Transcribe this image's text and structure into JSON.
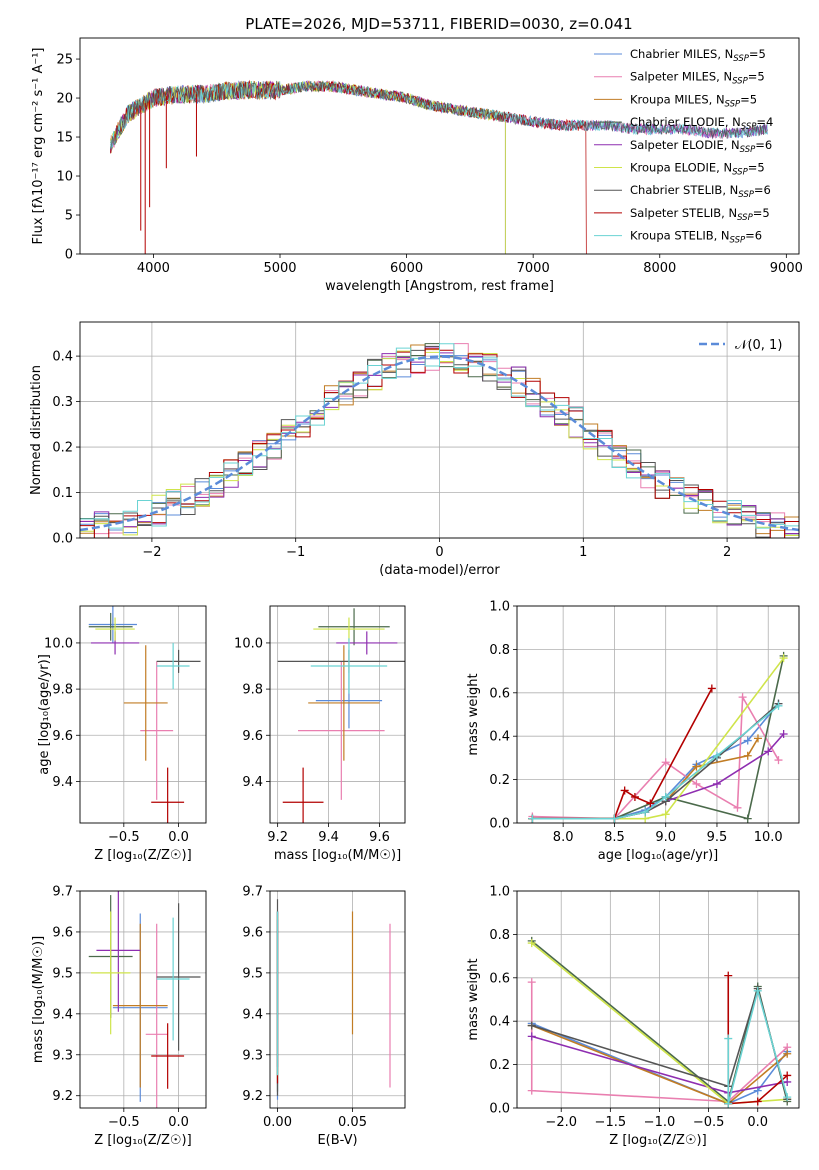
{
  "title": "PLATE=2026, MJD=53711, FIBERID=0030, z=0.041",
  "colors": [
    "#5b8bd9",
    "#e97fb0",
    "#c17c24",
    "#4b6a4b",
    "#8e2eb0",
    "#cfe44a",
    "#555555",
    "#b30000",
    "#6ad3d3"
  ],
  "legend": [
    {
      "label": "Chabrier MILES, N",
      "sub": "SSP",
      "eq": "=5"
    },
    {
      "label": "Salpeter MILES, N",
      "sub": "SSP",
      "eq": "=5"
    },
    {
      "label": "Kroupa MILES, N",
      "sub": "SSP",
      "eq": "=5"
    },
    {
      "label": "Chabrier ELODIE, N",
      "sub": "SSP",
      "eq": "=4"
    },
    {
      "label": "Salpeter ELODIE, N",
      "sub": "SSP",
      "eq": "=6"
    },
    {
      "label": "Kroupa ELODIE, N",
      "sub": "SSP",
      "eq": "=5"
    },
    {
      "label": "Chabrier STELIB, N",
      "sub": "SSP",
      "eq": "=6"
    },
    {
      "label": "Salpeter STELIB, N",
      "sub": "SSP",
      "eq": "=5"
    },
    {
      "label": "Kroupa STELIB, N",
      "sub": "SSP",
      "eq": "=6"
    }
  ],
  "normal_label": "𝒩(0, 1)",
  "chart_data": [
    {
      "type": "line",
      "xlabel": "wavelength [Angstrom, rest frame]",
      "ylabel": "Flux [fλ10⁻¹⁷ erg cm⁻² s⁻¹ A⁻¹]",
      "xlim": [
        3420,
        9100
      ],
      "ylim": [
        0,
        27.7
      ],
      "xticks": [
        4000,
        5000,
        6000,
        7000,
        8000,
        9000
      ],
      "yticks": [
        0,
        5,
        10,
        15,
        20,
        25
      ],
      "grid": false,
      "legend_position": "top-right",
      "spectrum_x": [
        3660,
        3800,
        4000,
        4200,
        4400,
        4600,
        4800,
        5000,
        5200,
        5400,
        5600,
        5800,
        6000,
        6200,
        6400,
        6600,
        6800,
        7000,
        7200,
        7400,
        7600,
        7800,
        8000,
        8200,
        8400,
        8600,
        8850
      ],
      "spectrum_y": [
        14,
        18,
        20,
        20.5,
        20.5,
        21,
        21,
        21,
        21.5,
        21.5,
        21,
        20.5,
        20,
        19,
        18.5,
        18,
        17.5,
        17,
        16.5,
        16.5,
        16.5,
        16,
        16,
        16,
        15.5,
        15.5,
        16
      ]
    },
    {
      "type": "line",
      "xlabel": "(data-model)/error",
      "ylabel": "Normed distribution",
      "xlim": [
        -2.5,
        2.5
      ],
      "ylim": [
        0,
        0.475
      ],
      "xticks": [
        -2,
        -1,
        0,
        1,
        2
      ],
      "yticks": [
        0.0,
        0.1,
        0.2,
        0.3,
        0.4
      ],
      "grid": true,
      "legend_position": "top-right",
      "bins": [
        -2.5,
        -2.4,
        -2.3,
        -2.2,
        -2.1,
        -2.0,
        -1.9,
        -1.8,
        -1.7,
        -1.6,
        -1.5,
        -1.4,
        -1.3,
        -1.2,
        -1.1,
        -1.0,
        -0.9,
        -0.8,
        -0.7,
        -0.6,
        -0.5,
        -0.4,
        -0.3,
        -0.2,
        -0.1,
        0.0,
        0.1,
        0.2,
        0.3,
        0.4,
        0.5,
        0.6,
        0.7,
        0.8,
        0.9,
        1.0,
        1.1,
        1.2,
        1.3,
        1.4,
        1.5,
        1.6,
        1.7,
        1.8,
        1.9,
        2.0,
        2.1,
        2.2,
        2.3,
        2.4,
        2.5
      ]
    },
    {
      "type": "scatter",
      "xlabel": "Z [log₁₀(Z/Z☉)]",
      "ylabel": "age  [log₁₀(age/yr)]",
      "xlim": [
        -0.9,
        0.25
      ],
      "ylim": [
        9.22,
        10.16
      ],
      "xticks": [
        -0.5,
        0.0
      ],
      "yticks": [
        9.4,
        9.6,
        9.8,
        10.0
      ],
      "grid": true,
      "points": [
        {
          "x": -0.6,
          "y": 10.08,
          "xe": 0.22,
          "ye": 0.08
        },
        {
          "x": -0.2,
          "y": 9.62,
          "xe": 0.15,
          "ye": 0.3
        },
        {
          "x": -0.3,
          "y": 9.74,
          "xe": 0.2,
          "ye": 0.25
        },
        {
          "x": -0.62,
          "y": 10.07,
          "xe": 0.2,
          "ye": 0.06
        },
        {
          "x": -0.58,
          "y": 10.0,
          "xe": 0.22,
          "ye": 0.05
        },
        {
          "x": -0.58,
          "y": 10.06,
          "xe": 0.18,
          "ye": 0.05
        },
        {
          "x": 0.0,
          "y": 9.92,
          "xe": 0.2,
          "ye": 0.05
        },
        {
          "x": -0.1,
          "y": 9.31,
          "xe": 0.15,
          "ye": 0.15
        },
        {
          "x": -0.05,
          "y": 9.9,
          "xe": 0.15,
          "ye": 0.1
        }
      ]
    },
    {
      "type": "scatter",
      "xlabel": "mass [log₁₀(M/M☉)]",
      "ylabel": "",
      "xlim": [
        9.17,
        9.7
      ],
      "ylim": [
        9.22,
        10.16
      ],
      "xticks": [
        9.2,
        9.4,
        9.6
      ],
      "yticks": [
        9.4,
        9.6,
        9.8,
        10.0
      ],
      "grid": true,
      "points": [
        {
          "x": 9.48,
          "y": 9.75,
          "xe": 0.13,
          "ye": 0.12
        },
        {
          "x": 9.45,
          "y": 9.62,
          "xe": 0.17,
          "ye": 0.3
        },
        {
          "x": 9.46,
          "y": 9.74,
          "xe": 0.14,
          "ye": 0.25
        },
        {
          "x": 9.5,
          "y": 10.07,
          "xe": 0.14,
          "ye": 0.08
        },
        {
          "x": 9.55,
          "y": 10.0,
          "xe": 0.12,
          "ye": 0.05
        },
        {
          "x": 9.48,
          "y": 10.06,
          "xe": 0.14,
          "ye": 0.05
        },
        {
          "x": 9.48,
          "y": 9.92,
          "xe": 0.28,
          "ye": 0.05
        },
        {
          "x": 9.3,
          "y": 9.31,
          "xe": 0.08,
          "ye": 0.15
        },
        {
          "x": 9.48,
          "y": 9.9,
          "xe": 0.15,
          "ye": 0.12
        }
      ]
    },
    {
      "type": "line",
      "xlabel": "age  [log₁₀(age/yr)]",
      "ylabel": "mass weight",
      "xlim": [
        7.55,
        10.3
      ],
      "ylim": [
        0,
        1.0
      ],
      "xticks": [
        8.0,
        8.5,
        9.0,
        9.5,
        10.0
      ],
      "yticks": [
        0.0,
        0.2,
        0.4,
        0.6,
        0.8,
        1.0
      ],
      "grid": true,
      "series": [
        {
          "x": [
            7.7,
            8.5,
            8.8,
            9.0,
            9.3,
            9.8,
            10.1
          ],
          "y": [
            0.02,
            0.02,
            0.06,
            0.12,
            0.27,
            0.38,
            0.55
          ]
        },
        {
          "x": [
            7.7,
            8.5,
            9.0,
            9.3,
            9.7,
            9.75,
            10.1
          ],
          "y": [
            0.03,
            0.02,
            0.28,
            0.18,
            0.07,
            0.58,
            0.29
          ]
        },
        {
          "x": [
            7.7,
            8.5,
            8.8,
            9.0,
            9.3,
            9.8,
            9.9
          ],
          "y": [
            0.02,
            0.02,
            0.05,
            0.1,
            0.26,
            0.31,
            0.39
          ]
        },
        {
          "x": [
            7.7,
            8.5,
            9.0,
            9.8,
            10.15
          ],
          "y": [
            0.02,
            0.02,
            0.12,
            0.02,
            0.77
          ]
        },
        {
          "x": [
            7.7,
            8.5,
            8.8,
            9.0,
            9.5,
            10.0,
            10.15
          ],
          "y": [
            0.02,
            0.02,
            0.05,
            0.1,
            0.18,
            0.33,
            0.41
          ]
        },
        {
          "x": [
            7.7,
            8.5,
            8.8,
            9.0,
            10.15
          ],
          "y": [
            0.02,
            0.02,
            0.02,
            0.04,
            0.76
          ]
        },
        {
          "x": [
            7.7,
            8.5,
            8.8,
            9.0,
            9.5,
            10.1
          ],
          "y": [
            0.02,
            0.02,
            0.05,
            0.1,
            0.3,
            0.55
          ]
        },
        {
          "x": [
            7.7,
            8.5,
            8.6,
            8.7,
            8.85,
            9.45
          ],
          "y": [
            0.02,
            0.02,
            0.15,
            0.12,
            0.09,
            0.62
          ]
        },
        {
          "x": [
            7.7,
            8.5,
            8.8,
            9.0,
            9.5,
            10.1
          ],
          "y": [
            0.02,
            0.02,
            0.05,
            0.12,
            0.31,
            0.54
          ]
        }
      ]
    },
    {
      "type": "scatter",
      "xlabel": "Z [log₁₀(Z/Z☉)]",
      "ylabel": "mass [log₁₀(M/M☉)]",
      "xlim": [
        -0.9,
        0.25
      ],
      "ylim": [
        9.17,
        9.7
      ],
      "xticks": [
        -0.5,
        0.0
      ],
      "yticks": [
        9.2,
        9.3,
        9.4,
        9.5,
        9.6,
        9.7
      ],
      "grid": true,
      "points": [
        {
          "x": -0.35,
          "y": 9.415,
          "xe": 0.25,
          "ye": 0.23
        },
        {
          "x": -0.2,
          "y": 9.35,
          "xe": 0.1,
          "ye": 0.27
        },
        {
          "x": -0.35,
          "y": 9.42,
          "xe": 0.25,
          "ye": 0.2
        },
        {
          "x": -0.62,
          "y": 9.54,
          "xe": 0.2,
          "ye": 0.15
        },
        {
          "x": -0.55,
          "y": 9.555,
          "xe": 0.2,
          "ye": 0.15
        },
        {
          "x": -0.62,
          "y": 9.5,
          "xe": 0.18,
          "ye": 0.15
        },
        {
          "x": 0.0,
          "y": 9.49,
          "xe": 0.2,
          "ye": 0.18
        },
        {
          "x": -0.1,
          "y": 9.297,
          "xe": 0.15,
          "ye": 0.08
        },
        {
          "x": -0.05,
          "y": 9.485,
          "xe": 0.15,
          "ye": 0.15
        }
      ]
    },
    {
      "type": "scatter",
      "xlabel": "E(B-V)",
      "ylabel": "",
      "xlim": [
        -0.005,
        0.085
      ],
      "ylim": [
        9.17,
        9.7
      ],
      "xticks": [
        0.0,
        0.05
      ],
      "yticks": [
        9.2,
        9.3,
        9.4,
        9.5,
        9.6,
        9.7
      ],
      "grid": true,
      "points": [
        {
          "x": 0.0,
          "y": 9.42,
          "xe": 0,
          "ye": 0.23
        },
        {
          "x": 0.075,
          "y": 9.42,
          "xe": 0,
          "ye": 0.2
        },
        {
          "x": 0.05,
          "y": 9.5,
          "xe": 0,
          "ye": 0.15
        },
        {
          "x": 0.0,
          "y": 9.43,
          "xe": 0,
          "ye": 0.22
        },
        {
          "x": 0.0,
          "y": 9.45,
          "xe": 0,
          "ye": 0.18
        },
        {
          "x": 0.0,
          "y": 9.44,
          "xe": 0,
          "ye": 0.2
        },
        {
          "x": 0.0,
          "y": 9.44,
          "xe": 0,
          "ye": 0.24
        },
        {
          "x": 0.0,
          "y": 9.44,
          "xe": 0,
          "ye": 0.21
        },
        {
          "x": 0.0,
          "y": 9.45,
          "xe": 0,
          "ye": 0.2
        }
      ]
    },
    {
      "type": "line",
      "xlabel": "Z [log₁₀(Z/Z☉)]",
      "ylabel": "mass weight",
      "xlim": [
        -2.45,
        0.42
      ],
      "ylim": [
        0,
        1.0
      ],
      "xticks": [
        -2.0,
        -1.5,
        -1.0,
        -0.5,
        0.0
      ],
      "yticks": [
        0.0,
        0.2,
        0.4,
        0.6,
        0.8,
        1.0
      ],
      "grid": true,
      "series": [
        {
          "x": [
            -2.3,
            -0.3,
            0.0,
            0.3
          ],
          "y": [
            0.39,
            0.02,
            0.08,
            0.26
          ]
        },
        {
          "x": [
            -2.3,
            -2.3,
            -0.3,
            0.3
          ],
          "y": [
            0.58,
            0.08,
            0.03,
            0.28
          ]
        },
        {
          "x": [
            -2.3,
            -0.3,
            0.3
          ],
          "y": [
            0.38,
            0.02,
            0.25
          ]
        },
        {
          "x": [
            -2.3,
            -0.3,
            0.0,
            0.3
          ],
          "y": [
            0.77,
            0.03,
            0.56,
            0.03
          ]
        },
        {
          "x": [
            -2.3,
            -0.3,
            0.3
          ],
          "y": [
            0.33,
            0.07,
            0.12
          ]
        },
        {
          "x": [
            -2.3,
            -0.3,
            0.3
          ],
          "y": [
            0.76,
            0.02,
            0.04
          ]
        },
        {
          "x": [
            -2.3,
            -0.3,
            0.0,
            0.3
          ],
          "y": [
            0.38,
            0.1,
            0.55,
            0.04
          ]
        },
        {
          "x": [
            -0.3,
            -0.3,
            0.0,
            0.3
          ],
          "y": [
            0.61,
            0.02,
            0.03,
            0.15
          ]
        },
        {
          "x": [
            -0.3,
            -0.3,
            0.0,
            0.3
          ],
          "y": [
            0.32,
            0.02,
            0.54,
            0.05
          ]
        }
      ]
    }
  ]
}
